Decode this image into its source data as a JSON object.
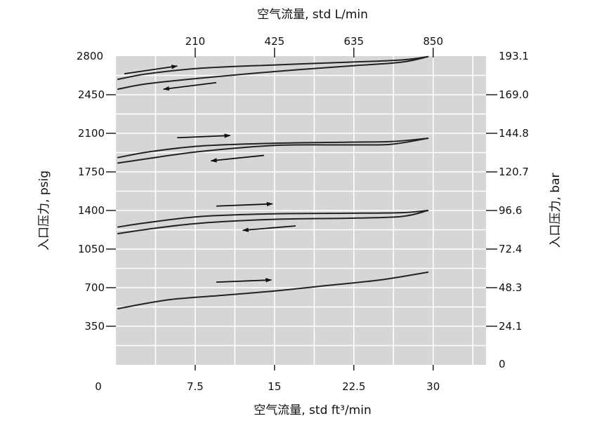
{
  "chart_data": {
    "type": "line",
    "xlabel_bottom": "空气流量, std ft³/min",
    "xlabel_top": "空气流量, std L/min",
    "ylabel_left": "入口压力, psig",
    "ylabel_right": "入口压力, bar",
    "xlim": [
      0,
      35
    ],
    "ylim": [
      0,
      2800
    ],
    "x_ticks_bottom": [
      {
        "label": "0",
        "value": 0
      },
      {
        "label": "7.5",
        "value": 7.5
      },
      {
        "label": "15",
        "value": 15
      },
      {
        "label": "22.5",
        "value": 22.5
      },
      {
        "label": "30",
        "value": 30
      }
    ],
    "x_ticks_top": [
      {
        "label": "210",
        "value": 7.5
      },
      {
        "label": "425",
        "value": 15
      },
      {
        "label": "635",
        "value": 22.5
      },
      {
        "label": "850",
        "value": 30
      }
    ],
    "y_ticks_left": [
      {
        "label": "350",
        "value": 350
      },
      {
        "label": "700",
        "value": 700
      },
      {
        "label": "1050",
        "value": 1050
      },
      {
        "label": "1400",
        "value": 1400
      },
      {
        "label": "1750",
        "value": 1750
      },
      {
        "label": "2100",
        "value": 2100
      },
      {
        "label": "2450",
        "value": 2450
      },
      {
        "label": "2800",
        "value": 2800
      }
    ],
    "y_ticks_right": [
      {
        "label": "0",
        "value": 0
      },
      {
        "label": "24.1",
        "value": 350
      },
      {
        "label": "48.3",
        "value": 700
      },
      {
        "label": "72.4",
        "value": 1050
      },
      {
        "label": "96.6",
        "value": 1400
      },
      {
        "label": "120.7",
        "value": 1750
      },
      {
        "label": "144.8",
        "value": 2100
      },
      {
        "label": "169.0",
        "value": 2450
      },
      {
        "label": "193.1",
        "value": 2800
      }
    ],
    "grid": true,
    "background": "#d6d6d6",
    "line_color": "#222222",
    "series": [
      {
        "values": [
          [
            0.2,
            2590
          ],
          [
            3,
            2640
          ],
          [
            8,
            2690
          ],
          [
            15,
            2720
          ],
          [
            22,
            2745
          ],
          [
            27,
            2765
          ],
          [
            29.5,
            2795
          ]
        ]
      },
      {
        "values": [
          [
            29.5,
            2795
          ],
          [
            27,
            2745
          ],
          [
            22,
            2710
          ],
          [
            15,
            2660
          ],
          [
            8,
            2600
          ],
          [
            3,
            2550
          ],
          [
            0.2,
            2500
          ]
        ]
      },
      {
        "values": [
          [
            0.2,
            1880
          ],
          [
            3,
            1930
          ],
          [
            8,
            1985
          ],
          [
            15,
            2010
          ],
          [
            22,
            2020
          ],
          [
            26,
            2025
          ],
          [
            29.5,
            2055
          ]
        ]
      },
      {
        "values": [
          [
            29.5,
            2055
          ],
          [
            26,
            2000
          ],
          [
            22,
            1995
          ],
          [
            15,
            1990
          ],
          [
            8,
            1935
          ],
          [
            3,
            1870
          ],
          [
            0.2,
            1830
          ]
        ]
      },
      {
        "values": [
          [
            0.2,
            1250
          ],
          [
            3,
            1290
          ],
          [
            8,
            1345
          ],
          [
            15,
            1370
          ],
          [
            22,
            1375
          ],
          [
            27,
            1380
          ],
          [
            29.5,
            1400
          ]
        ]
      },
      {
        "values": [
          [
            29.5,
            1400
          ],
          [
            27,
            1345
          ],
          [
            22,
            1330
          ],
          [
            15,
            1320
          ],
          [
            8,
            1285
          ],
          [
            3,
            1230
          ],
          [
            0.2,
            1190
          ]
        ]
      },
      {
        "values": [
          [
            0.2,
            510
          ],
          [
            5,
            590
          ],
          [
            10,
            630
          ],
          [
            15,
            670
          ],
          [
            20,
            720
          ],
          [
            25,
            770
          ],
          [
            29.5,
            840
          ]
        ]
      }
    ],
    "arrows": [
      {
        "from": [
          0.8,
          2640
        ],
        "to": [
          5.8,
          2710
        ],
        "direction": "right"
      },
      {
        "from": [
          9.5,
          2560
        ],
        "to": [
          4.5,
          2500
        ],
        "direction": "left"
      },
      {
        "from": [
          5.8,
          2060
        ],
        "to": [
          10.8,
          2080
        ],
        "direction": "right"
      },
      {
        "from": [
          14,
          1900
        ],
        "to": [
          9,
          1850
        ],
        "direction": "left"
      },
      {
        "from": [
          9.5,
          1440
        ],
        "to": [
          14.8,
          1460
        ],
        "direction": "right"
      },
      {
        "from": [
          17,
          1260
        ],
        "to": [
          12,
          1220
        ],
        "direction": "left"
      },
      {
        "from": [
          9.5,
          750
        ],
        "to": [
          14.7,
          770
        ],
        "direction": "right"
      }
    ]
  }
}
